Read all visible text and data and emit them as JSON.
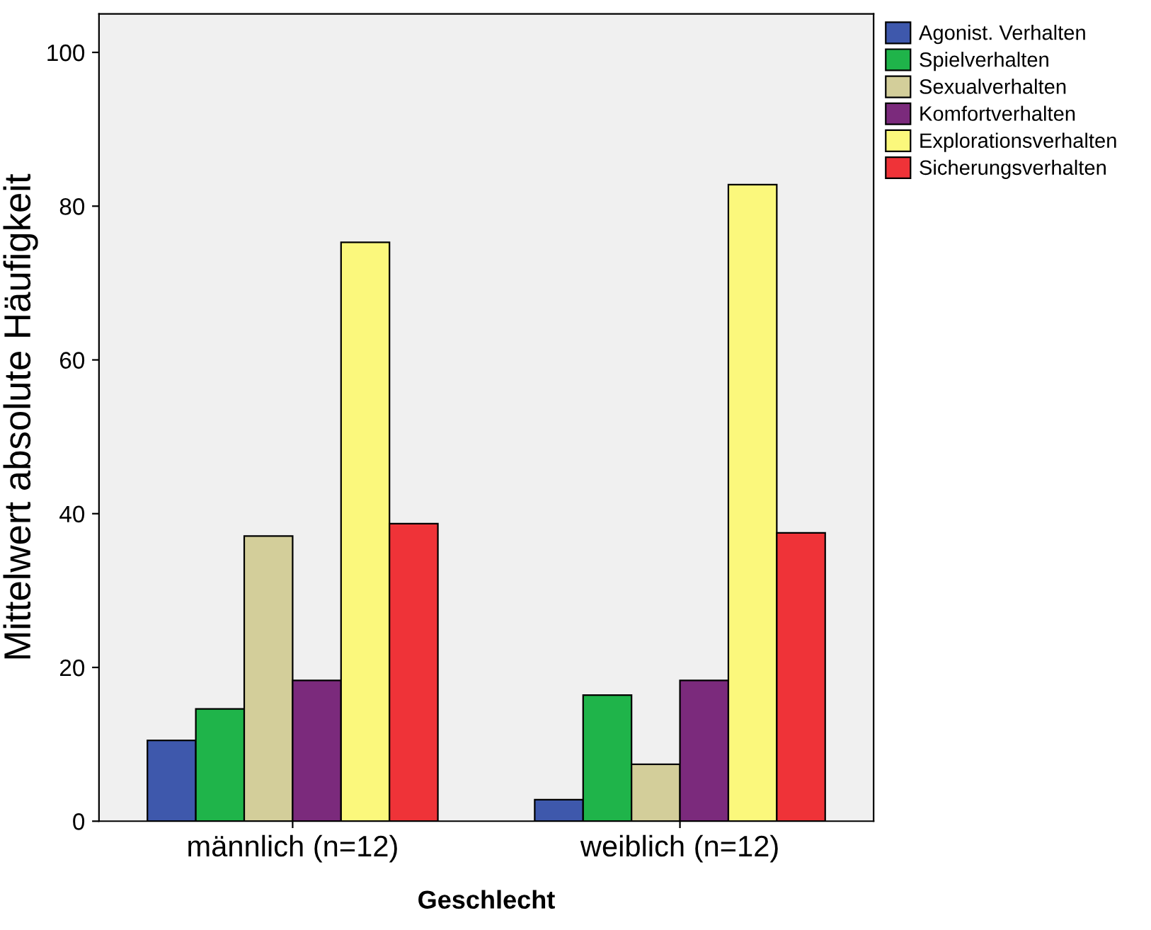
{
  "chart_data": {
    "type": "bar",
    "xlabel": "Geschlecht",
    "ylabel": "Mittelwert absolute Häufigkeit",
    "categories": [
      "männlich (n=12)",
      "weiblich (n=12)"
    ],
    "series": [
      {
        "name": "Agonist. Verhalten",
        "color": "#3e58ac",
        "values": [
          10.5,
          2.8
        ]
      },
      {
        "name": "Spielverhalten",
        "color": "#1fb44a",
        "values": [
          14.6,
          16.4
        ]
      },
      {
        "name": "Sexualverhalten",
        "color": "#d3ce9a",
        "values": [
          37.1,
          7.4
        ]
      },
      {
        "name": "Komfortverhalten",
        "color": "#7b2a7c",
        "values": [
          18.3,
          18.3
        ]
      },
      {
        "name": "Explorationsverhalten",
        "color": "#fbf87c",
        "values": [
          75.3,
          82.8
        ]
      },
      {
        "name": "Sicherungsverhalten",
        "color": "#ef3338",
        "values": [
          38.7,
          37.5
        ]
      }
    ],
    "ylim": [
      0,
      105
    ],
    "yticks": [
      0,
      20,
      40,
      60,
      80,
      100
    ],
    "grid": false,
    "legend": "top right"
  }
}
